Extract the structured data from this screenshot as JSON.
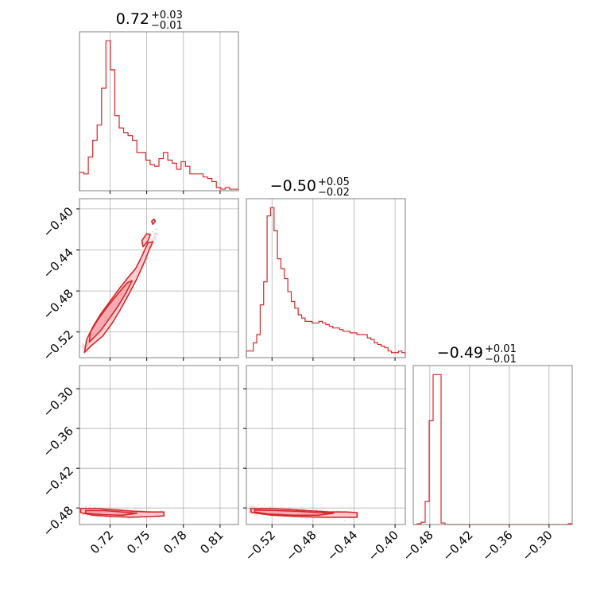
{
  "chart_data": {
    "type": "corner",
    "color": "#d62728",
    "fill_color": "#f7c5cc",
    "grid": true,
    "params": [
      {
        "median": "0.72",
        "plus": "+0.03",
        "minus": "−0.01",
        "range": [
          0.695,
          0.825
        ],
        "ticks": [
          0.72,
          0.75,
          0.78,
          0.81
        ],
        "tick_labels": [
          "0.72",
          "0.75",
          "0.78",
          "0.81"
        ],
        "hist": {
          "edges_range": [
            0.695,
            0.825
          ],
          "bins": 36,
          "counts": [
            12,
            11,
            22,
            33,
            43,
            67,
            98,
            79,
            49,
            41,
            38,
            36,
            33,
            25,
            25,
            20,
            17,
            16,
            21,
            25,
            20,
            18,
            14,
            19,
            16,
            11,
            11,
            11,
            9,
            8,
            6,
            2,
            1,
            2,
            1,
            1
          ]
        }
      },
      {
        "median": "−0.50",
        "plus": "+0.05",
        "minus": "−0.02",
        "range": [
          -0.545,
          -0.39
        ],
        "ticks": [
          -0.52,
          -0.48,
          -0.44,
          -0.4
        ],
        "tick_labels": [
          "−0.52",
          "−0.48",
          "−0.44",
          "−0.40"
        ],
        "hist": {
          "edges_range": [
            -0.545,
            -0.39
          ],
          "bins": 46,
          "counts": [
            4,
            4,
            9,
            14,
            32,
            46,
            86,
            91,
            77,
            60,
            54,
            48,
            40,
            34,
            30,
            26,
            24,
            22,
            22,
            21,
            21,
            22,
            21,
            20,
            19,
            18,
            18,
            17,
            16,
            16,
            15,
            15,
            14,
            14,
            14,
            12,
            11,
            9,
            8,
            7,
            6,
            4,
            3,
            3,
            4,
            3
          ]
        }
      },
      {
        "median": "−0.49",
        "plus": "+0.01",
        "minus": "−0.01",
        "range": [
          -0.505,
          -0.265
        ],
        "ticks": [
          -0.48,
          -0.42,
          -0.36,
          -0.3
        ],
        "tick_labels": [
          "−0.48",
          "−0.42",
          "−0.36",
          "−0.30"
        ],
        "hist": {
          "edges_range": [
            -0.505,
            -0.265
          ],
          "bins": 40,
          "counts": [
            0,
            1,
            3,
            30,
            135,
            195,
            195,
            2,
            0,
            0,
            0,
            0,
            0,
            0,
            0,
            0,
            0,
            0,
            0,
            0,
            0,
            0,
            0,
            0,
            0,
            0,
            0,
            0,
            0,
            0,
            0,
            0,
            0,
            0,
            0,
            0,
            0,
            0,
            0,
            1
          ]
        }
      }
    ],
    "scatter": [
      {
        "x_param": 0,
        "y_param": 1,
        "trend": {
          "x": [
            0.7,
            0.712,
            0.722,
            0.732,
            0.742,
            0.752,
            0.76
          ],
          "y": [
            -0.535,
            -0.515,
            -0.497,
            -0.478,
            -0.462,
            -0.438,
            -0.418
          ]
        },
        "contours": [
          {
            "level": "outer",
            "points": [
              [
                0.699,
                -0.54
              ],
              [
                0.705,
                -0.533
              ],
              [
                0.714,
                -0.524
              ],
              [
                0.722,
                -0.511
              ],
              [
                0.728,
                -0.499
              ],
              [
                0.735,
                -0.484
              ],
              [
                0.742,
                -0.468
              ],
              [
                0.748,
                -0.452
              ],
              [
                0.752,
                -0.44
              ],
              [
                0.755,
                -0.432
              ],
              [
                0.751,
                -0.433
              ],
              [
                0.746,
                -0.446
              ],
              [
                0.741,
                -0.458
              ],
              [
                0.734,
                -0.468
              ],
              [
                0.728,
                -0.477
              ],
              [
                0.72,
                -0.49
              ],
              [
                0.712,
                -0.503
              ],
              [
                0.706,
                -0.515
              ],
              [
                0.701,
                -0.527
              ],
              [
                0.699,
                -0.54
              ]
            ]
          },
          {
            "level": "inner",
            "points": [
              [
                0.703,
                -0.53
              ],
              [
                0.712,
                -0.519
              ],
              [
                0.72,
                -0.506
              ],
              [
                0.727,
                -0.494
              ],
              [
                0.733,
                -0.482
              ],
              [
                0.738,
                -0.47
              ],
              [
                0.734,
                -0.472
              ],
              [
                0.727,
                -0.482
              ],
              [
                0.718,
                -0.495
              ],
              [
                0.71,
                -0.508
              ],
              [
                0.704,
                -0.52
              ],
              [
                0.703,
                -0.53
              ]
            ]
          },
          {
            "level": "island",
            "points": [
              [
                0.747,
                -0.437
              ],
              [
                0.751,
                -0.431
              ],
              [
                0.753,
                -0.425
              ],
              [
                0.75,
                -0.424
              ],
              [
                0.746,
                -0.431
              ],
              [
                0.747,
                -0.437
              ]
            ]
          },
          {
            "level": "island",
            "points": [
              [
                0.755,
                -0.415
              ],
              [
                0.757,
                -0.412
              ],
              [
                0.756,
                -0.41
              ],
              [
                0.754,
                -0.412
              ],
              [
                0.755,
                -0.415
              ]
            ]
          }
        ]
      },
      {
        "x_param": 0,
        "y_param": 2,
        "trend": {
          "x": [
            0.7,
            0.715,
            0.73,
            0.745,
            0.76
          ],
          "y": [
            -0.484,
            -0.486,
            -0.488,
            -0.489,
            -0.49
          ]
        },
        "contours": [
          {
            "level": "outer",
            "points": [
              [
                0.696,
                -0.481
              ],
              [
                0.71,
                -0.481
              ],
              [
                0.725,
                -0.483
              ],
              [
                0.74,
                -0.485
              ],
              [
                0.752,
                -0.486
              ],
              [
                0.764,
                -0.486
              ],
              [
                0.764,
                -0.492
              ],
              [
                0.752,
                -0.493
              ],
              [
                0.738,
                -0.494
              ],
              [
                0.722,
                -0.493
              ],
              [
                0.706,
                -0.491
              ],
              [
                0.696,
                -0.487
              ],
              [
                0.696,
                -0.481
              ]
            ]
          },
          {
            "level": "inner",
            "points": [
              [
                0.7,
                -0.484
              ],
              [
                0.715,
                -0.484
              ],
              [
                0.73,
                -0.486
              ],
              [
                0.742,
                -0.488
              ],
              [
                0.73,
                -0.491
              ],
              [
                0.714,
                -0.49
              ],
              [
                0.7,
                -0.488
              ],
              [
                0.7,
                -0.484
              ]
            ]
          }
        ]
      },
      {
        "x_param": 1,
        "y_param": 2,
        "trend": {
          "x": [
            -0.54,
            -0.52,
            -0.5,
            -0.48,
            -0.46,
            -0.44
          ],
          "y": [
            -0.483,
            -0.485,
            -0.487,
            -0.488,
            -0.489,
            -0.49
          ]
        },
        "contours": [
          {
            "level": "outer",
            "points": [
              [
                -0.541,
                -0.481
              ],
              [
                -0.525,
                -0.481
              ],
              [
                -0.505,
                -0.482
              ],
              [
                -0.485,
                -0.484
              ],
              [
                -0.465,
                -0.486
              ],
              [
                -0.448,
                -0.486
              ],
              [
                -0.437,
                -0.487
              ],
              [
                -0.437,
                -0.494
              ],
              [
                -0.452,
                -0.494
              ],
              [
                -0.472,
                -0.494
              ],
              [
                -0.495,
                -0.493
              ],
              [
                -0.52,
                -0.491
              ],
              [
                -0.54,
                -0.487
              ],
              [
                -0.541,
                -0.481
              ]
            ]
          },
          {
            "level": "inner",
            "points": [
              [
                -0.537,
                -0.483
              ],
              [
                -0.515,
                -0.484
              ],
              [
                -0.495,
                -0.485
              ],
              [
                -0.475,
                -0.487
              ],
              [
                -0.46,
                -0.488
              ],
              [
                -0.475,
                -0.491
              ],
              [
                -0.5,
                -0.491
              ],
              [
                -0.525,
                -0.489
              ],
              [
                -0.537,
                -0.486
              ],
              [
                -0.537,
                -0.483
              ]
            ]
          }
        ]
      }
    ]
  }
}
